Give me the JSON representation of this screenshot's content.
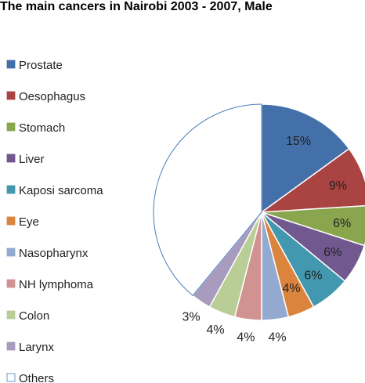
{
  "chart_data": {
    "type": "pie",
    "title": "The main cancers in Nairobi 2003 - 2007, Male",
    "legend_position": "left",
    "slices": [
      {
        "name": "Prostate",
        "value": 15,
        "label": "15%",
        "color": "#4470aa"
      },
      {
        "name": "Oesophagus",
        "value": 9,
        "label": "9%",
        "color": "#aa4442"
      },
      {
        "name": "Stomach",
        "value": 6,
        "label": "6%",
        "color": "#89a54e"
      },
      {
        "name": "Liver",
        "value": 6,
        "label": "6%",
        "color": "#71588f"
      },
      {
        "name": "Kaposi sarcoma",
        "value": 6,
        "label": "6%",
        "color": "#4198af"
      },
      {
        "name": "Eye",
        "value": 4,
        "label": "4%",
        "color": "#db843d"
      },
      {
        "name": "Nasopharynx",
        "value": 4,
        "label": "4%",
        "color": "#93a9cf"
      },
      {
        "name": "NH lymphoma",
        "value": 4,
        "label": "4%",
        "color": "#d19392"
      },
      {
        "name": "Colon",
        "value": 4,
        "label": "4%",
        "color": "#b9cd96"
      },
      {
        "name": "Larynx",
        "value": 3,
        "label": "3%",
        "color": "#a99bbd"
      },
      {
        "name": "Others",
        "value": 39,
        "label": "",
        "color": "#ffffff"
      }
    ]
  }
}
